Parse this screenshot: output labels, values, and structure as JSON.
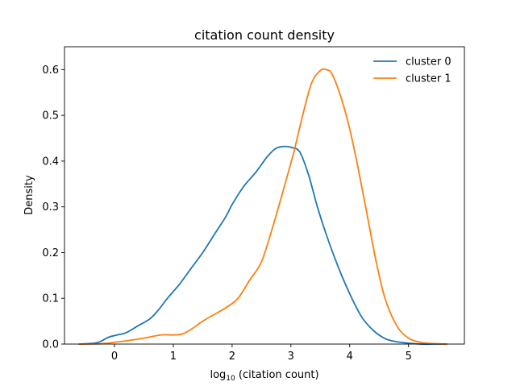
{
  "chart_data": {
    "type": "line",
    "title": "citation count density",
    "xlabel": {
      "prefix": "log",
      "subscript": "10",
      "suffix": " (citation count)"
    },
    "ylabel": "Density",
    "xlim": [
      -0.85,
      5.95
    ],
    "ylim": [
      0,
      0.65
    ],
    "x_ticks": [
      0,
      1,
      2,
      3,
      4,
      5
    ],
    "y_ticks": [
      0.0,
      0.1,
      0.2,
      0.3,
      0.4,
      0.5,
      0.6
    ],
    "y_tick_labels": [
      "0.0",
      "0.1",
      "0.2",
      "0.3",
      "0.4",
      "0.5",
      "0.6"
    ],
    "grid": false,
    "legend_position": "top-right",
    "series": [
      {
        "name": "cluster 0",
        "color": "#1f77b4",
        "x": [
          -0.6,
          -0.3,
          -0.1,
          0.05,
          0.2,
          0.4,
          0.6,
          0.75,
          0.9,
          1.1,
          1.3,
          1.5,
          1.7,
          1.9,
          2.0,
          2.2,
          2.4,
          2.6,
          2.75,
          2.9,
          3.0,
          3.15,
          3.3,
          3.45,
          3.6,
          3.8,
          4.0,
          4.2,
          4.4,
          4.6,
          4.8,
          5.0,
          5.2,
          5.4,
          5.65
        ],
        "y": [
          0.0,
          0.003,
          0.015,
          0.02,
          0.025,
          0.04,
          0.055,
          0.075,
          0.1,
          0.13,
          0.165,
          0.2,
          0.24,
          0.28,
          0.305,
          0.345,
          0.375,
          0.41,
          0.428,
          0.432,
          0.43,
          0.42,
          0.37,
          0.3,
          0.24,
          0.17,
          0.11,
          0.06,
          0.03,
          0.012,
          0.005,
          0.002,
          0.0,
          0.0,
          0.0
        ]
      },
      {
        "name": "cluster 1",
        "color": "#ff7f0e",
        "x": [
          -0.6,
          -0.2,
          0.0,
          0.2,
          0.5,
          0.8,
          1.0,
          1.15,
          1.3,
          1.5,
          1.7,
          1.9,
          2.1,
          2.3,
          2.5,
          2.7,
          2.9,
          3.05,
          3.2,
          3.35,
          3.5,
          3.6,
          3.7,
          3.85,
          4.0,
          4.15,
          4.3,
          4.45,
          4.6,
          4.8,
          5.0,
          5.2,
          5.4,
          5.65
        ],
        "y": [
          0.0,
          0.001,
          0.004,
          0.007,
          0.013,
          0.02,
          0.02,
          0.022,
          0.032,
          0.05,
          0.065,
          0.08,
          0.1,
          0.14,
          0.18,
          0.26,
          0.35,
          0.42,
          0.5,
          0.57,
          0.598,
          0.6,
          0.59,
          0.54,
          0.47,
          0.38,
          0.28,
          0.18,
          0.1,
          0.04,
          0.013,
          0.004,
          0.001,
          0.0
        ]
      }
    ]
  }
}
